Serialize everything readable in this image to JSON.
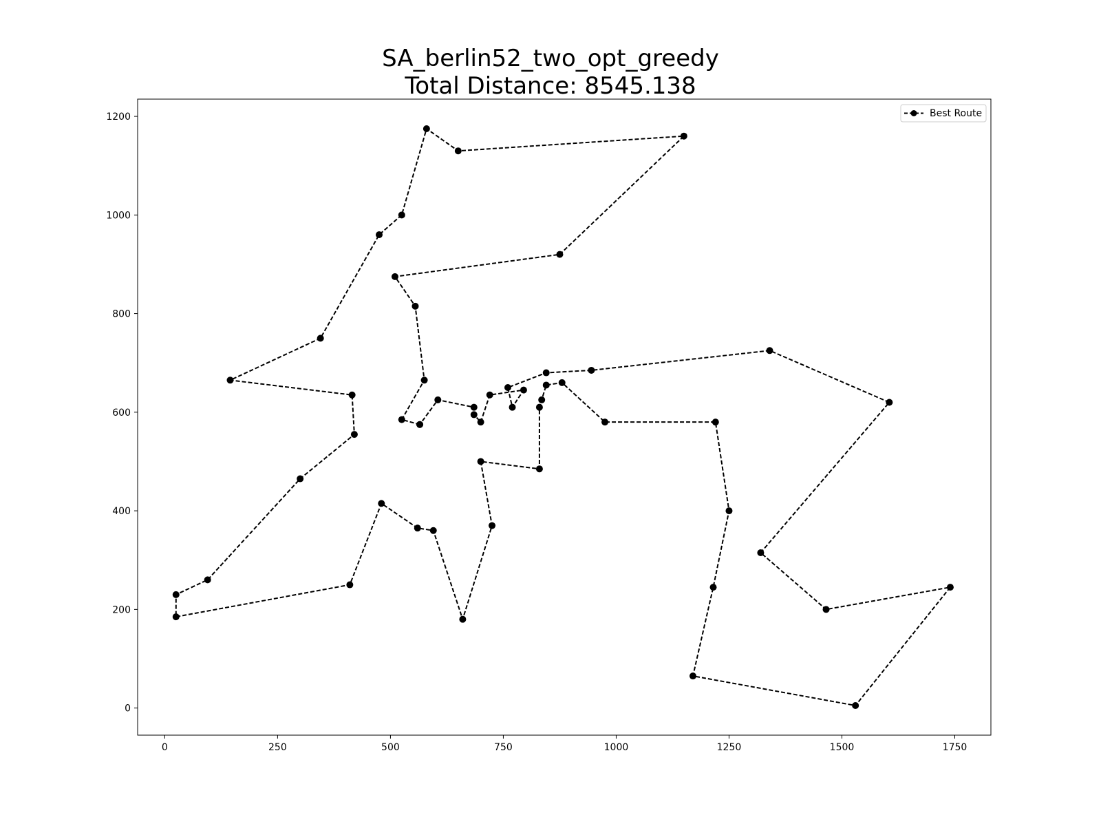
{
  "chart_data": {
    "type": "line",
    "title": "SA_berlin52_two_opt_greedy",
    "subtitle": "Total Distance: 8545.138",
    "xlabel": "",
    "ylabel": "",
    "xlim": [
      -60,
      1830
    ],
    "ylim": [
      -55,
      1235
    ],
    "xticks": [
      0,
      250,
      500,
      750,
      1000,
      1250,
      1500,
      1750
    ],
    "yticks": [
      0,
      200,
      400,
      600,
      800,
      1000,
      1200
    ],
    "grid": false,
    "legend_position": "top-right",
    "series": [
      {
        "name": "Best Route",
        "line_style": "dashed",
        "marker": "circle",
        "color": "#000000",
        "points": [
          [
            565,
            575
          ],
          [
            525,
            585
          ],
          [
            575,
            665
          ],
          [
            555,
            815
          ],
          [
            510,
            875
          ],
          [
            875,
            920
          ],
          [
            1150,
            1160
          ],
          [
            650,
            1130
          ],
          [
            580,
            1175
          ],
          [
            525,
            1000
          ],
          [
            475,
            960
          ],
          [
            345,
            750
          ],
          [
            145,
            665
          ],
          [
            415,
            635
          ],
          [
            420,
            555
          ],
          [
            300,
            465
          ],
          [
            95,
            260
          ],
          [
            25,
            230
          ],
          [
            25,
            185
          ],
          [
            410,
            250
          ],
          [
            480,
            415
          ],
          [
            560,
            365
          ],
          [
            595,
            360
          ],
          [
            660,
            180
          ],
          [
            725,
            370
          ],
          [
            700,
            500
          ],
          [
            830,
            485
          ],
          [
            830,
            610
          ],
          [
            835,
            625
          ],
          [
            845,
            655
          ],
          [
            880,
            660
          ],
          [
            975,
            580
          ],
          [
            1220,
            580
          ],
          [
            1250,
            400
          ],
          [
            1215,
            245
          ],
          [
            1170,
            65
          ],
          [
            1530,
            5
          ],
          [
            1740,
            245
          ],
          [
            1465,
            200
          ],
          [
            1320,
            315
          ],
          [
            1605,
            620
          ],
          [
            1340,
            725
          ],
          [
            945,
            685
          ],
          [
            845,
            680
          ],
          [
            760,
            650
          ],
          [
            770,
            610
          ],
          [
            795,
            645
          ],
          [
            720,
            635
          ],
          [
            700,
            580
          ],
          [
            685,
            595
          ],
          [
            685,
            610
          ],
          [
            605,
            625
          ],
          [
            565,
            575
          ]
        ]
      }
    ]
  }
}
